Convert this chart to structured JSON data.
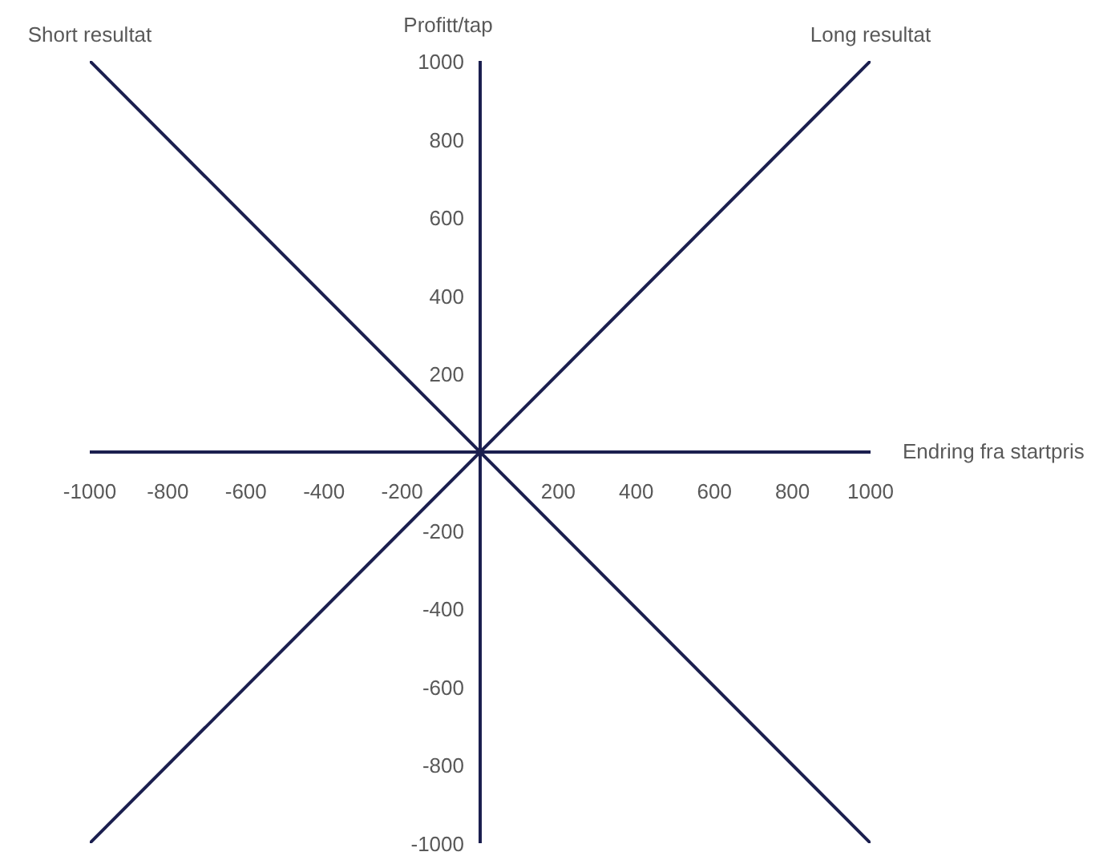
{
  "chart_data": {
    "type": "line",
    "xlabel": "Endring fra startpris",
    "ylabel": "Profitt/tap",
    "x": [
      -1000,
      1000
    ],
    "xlim": [
      -1000,
      1000
    ],
    "ylim": [
      -1000,
      1000
    ],
    "xticks": [
      -1000,
      -800,
      -600,
      -400,
      -200,
      200,
      400,
      600,
      800,
      1000
    ],
    "yticks": [
      -1000,
      -800,
      -600,
      -400,
      -200,
      200,
      400,
      600,
      800,
      1000
    ],
    "series": [
      {
        "name": "Long resultat",
        "color": "#1b1f4f",
        "values": [
          -1000,
          1000
        ]
      },
      {
        "name": "Short resultat",
        "color": "#1b1f4f",
        "values": [
          1000,
          -1000
        ]
      }
    ],
    "grid": false,
    "legend": false,
    "marker": "none",
    "line_style": "solid"
  }
}
